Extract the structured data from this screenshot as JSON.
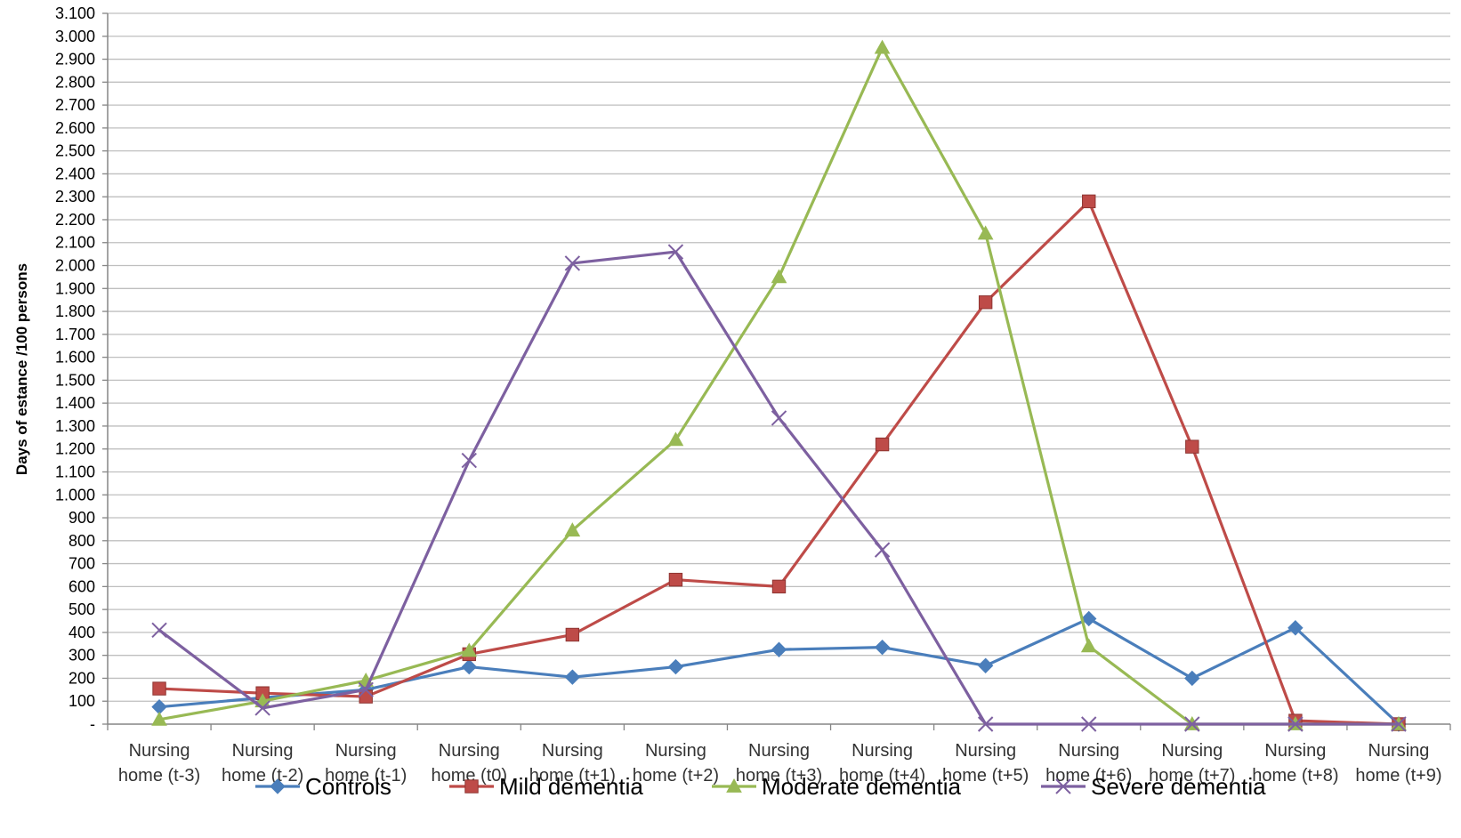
{
  "chart_data": {
    "type": "line",
    "ylabel": "Days of estance /100 persons",
    "ylim": [
      0,
      3100
    ],
    "y_step": 100,
    "y_tick_labels": [
      "-",
      "100",
      "200",
      "300",
      "400",
      "500",
      "600",
      "700",
      "800",
      "900",
      "1.000",
      "1.100",
      "1.200",
      "1.300",
      "1.400",
      "1.500",
      "1.600",
      "1.700",
      "1.800",
      "1.900",
      "2.000",
      "2.100",
      "2.200",
      "2.300",
      "2.400",
      "2.500",
      "2.600",
      "2.700",
      "2.800",
      "2.900",
      "3.000",
      "3.100"
    ],
    "grid": true,
    "legend_position": "bottom",
    "categories": [
      [
        "Nursing",
        "home (t-3)"
      ],
      [
        "Nursing",
        "home (t-2)"
      ],
      [
        "Nursing",
        "home (t-1)"
      ],
      [
        "Nursing",
        "home (t0)"
      ],
      [
        "Nursing",
        "home (t+1)"
      ],
      [
        "Nursing",
        "home (t+2)"
      ],
      [
        "Nursing",
        "home (t+3)"
      ],
      [
        "Nursing",
        "home (t+4)"
      ],
      [
        "Nursing",
        "home (t+5)"
      ],
      [
        "Nursing",
        "home (t+6)"
      ],
      [
        "Nursing",
        "home (t+7)"
      ],
      [
        "Nursing",
        "home (t+8)"
      ],
      [
        "Nursing",
        "home (t+9)"
      ]
    ],
    "series": [
      {
        "name": "Controls",
        "color": "#4a7ebb",
        "marker": "diamond",
        "values": [
          75,
          115,
          150,
          250,
          205,
          250,
          325,
          335,
          255,
          460,
          200,
          420,
          0
        ]
      },
      {
        "name": "Mild dementia",
        "color": "#be4b48",
        "marker": "square",
        "values": [
          155,
          135,
          120,
          305,
          390,
          630,
          600,
          1220,
          1840,
          2280,
          1210,
          15,
          0
        ]
      },
      {
        "name": "Moderate dementia",
        "color": "#98b954",
        "marker": "triangle",
        "values": [
          20,
          100,
          190,
          320,
          845,
          1240,
          1950,
          2950,
          2140,
          340,
          0,
          0,
          0
        ]
      },
      {
        "name": "Severe dementia",
        "color": "#7d60a0",
        "marker": "x",
        "values": [
          410,
          70,
          150,
          1150,
          2010,
          2060,
          1335,
          760,
          0,
          0,
          0,
          0,
          0
        ]
      }
    ]
  }
}
